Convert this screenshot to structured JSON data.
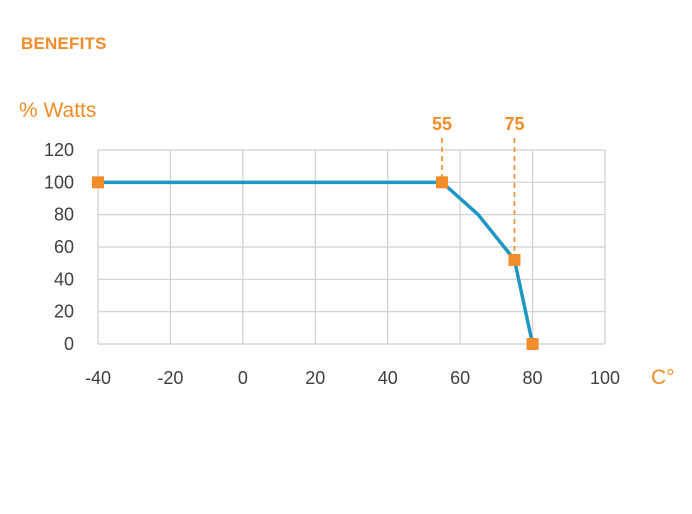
{
  "heading": "BENEFITS",
  "colors": {
    "accent": "#F28C28",
    "line": "#1F97C3",
    "grid": "#CFCFCF",
    "text": "#404040"
  },
  "chart_data": {
    "type": "line",
    "ylabel": "% Watts",
    "xlabel": "C°",
    "xlim": [
      -40,
      100
    ],
    "ylim": [
      0,
      120
    ],
    "x_ticks": [
      -40,
      -20,
      0,
      20,
      40,
      60,
      80,
      100
    ],
    "y_ticks": [
      0,
      20,
      40,
      60,
      80,
      100,
      120
    ],
    "grid": true,
    "series": [
      {
        "x": [
          -40,
          55,
          65,
          75,
          80
        ],
        "y": [
          100,
          100,
          80,
          52,
          0
        ]
      }
    ],
    "markers": [
      {
        "x": -40,
        "y": 100
      },
      {
        "x": 55,
        "y": 100
      },
      {
        "x": 75,
        "y": 52
      },
      {
        "x": 80,
        "y": 0
      }
    ],
    "annotations": [
      {
        "x": 55,
        "label": "55"
      },
      {
        "x": 75,
        "label": "75"
      }
    ]
  }
}
